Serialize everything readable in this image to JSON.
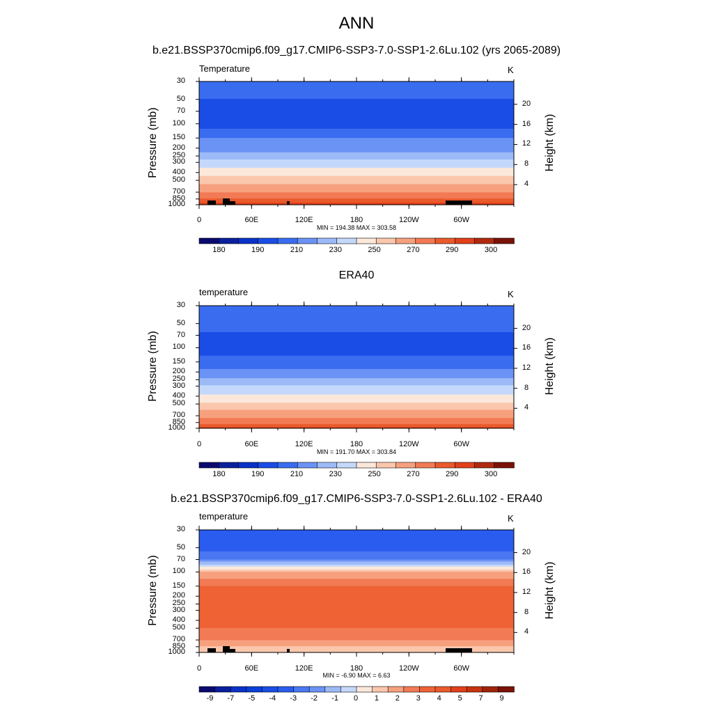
{
  "page_title": "ANN",
  "panels": [
    {
      "title": "b.e21.BSSP370cmip6.f09_g17.CMIP6-SSP3-7.0-SSP1-2.6Lu.102 (yrs 2065-2089)",
      "var_label": "Temperature",
      "unit": "K",
      "stats": "MIN = 194.38  MAX = 303.58",
      "y_left_label": "Pressure (mb)",
      "y_right_label": "Height (km)"
    },
    {
      "title": "ERA40",
      "var_label": "temperature",
      "unit": "K",
      "stats": "MIN = 191.70  MAX = 303.84",
      "y_left_label": "Pressure (mb)",
      "y_right_label": "Height (km)"
    },
    {
      "title": "b.e21.BSSP370cmip6.f09_g17.CMIP6-SSP3-7.0-SSP1-2.6Lu.102 - ERA40",
      "var_label": "temperature",
      "unit": "K",
      "stats": "MIN =  -6.90  MAX =   6.63",
      "y_left_label": "Pressure (mb)",
      "y_right_label": "Height (km)"
    }
  ],
  "chart_data": [
    {
      "type": "heatmap",
      "title": "b.e21.BSSP370cmip6.f09_g17.CMIP6-SSP3-7.0-SSP1-2.6Lu.102 (yrs 2065-2089)",
      "variable": "Temperature",
      "units": "K",
      "x_ticks": [
        "0",
        "60E",
        "120E",
        "180",
        "120W",
        "60W"
      ],
      "pressure_ticks": [
        30,
        50,
        70,
        100,
        150,
        200,
        250,
        300,
        400,
        500,
        700,
        850,
        1000
      ],
      "height_ticks_km": [
        4,
        8,
        12,
        16,
        20
      ],
      "colorbar_levels": [
        180,
        185,
        190,
        200,
        210,
        220,
        230,
        240,
        250,
        260,
        270,
        280,
        290,
        295,
        300,
        305
      ],
      "colorbar_labels": [
        "180",
        "190",
        "210",
        "230",
        "250",
        "270",
        "290",
        "300"
      ],
      "min": 194.38,
      "max": 303.58,
      "profile": [
        {
          "pressure": 30,
          "value": 215
        },
        {
          "pressure": 50,
          "value": 210
        },
        {
          "pressure": 100,
          "value": 205
        },
        {
          "pressure": 150,
          "value": 220
        },
        {
          "pressure": 200,
          "value": 225
        },
        {
          "pressure": 250,
          "value": 235
        },
        {
          "pressure": 300,
          "value": 245
        },
        {
          "pressure": 400,
          "value": 255
        },
        {
          "pressure": 500,
          "value": 265
        },
        {
          "pressure": 700,
          "value": 280
        },
        {
          "pressure": 850,
          "value": 290
        },
        {
          "pressure": 1000,
          "value": 298
        }
      ]
    },
    {
      "type": "heatmap",
      "title": "ERA40",
      "variable": "temperature",
      "units": "K",
      "x_ticks": [
        "0",
        "60E",
        "120E",
        "180",
        "120W",
        "60W"
      ],
      "pressure_ticks": [
        30,
        50,
        70,
        100,
        150,
        200,
        250,
        300,
        400,
        500,
        700,
        850,
        1000
      ],
      "height_ticks_km": [
        4,
        8,
        12,
        16,
        20
      ],
      "colorbar_levels": [
        180,
        185,
        190,
        200,
        210,
        220,
        230,
        240,
        250,
        260,
        270,
        280,
        290,
        295,
        300,
        305
      ],
      "colorbar_labels": [
        "180",
        "190",
        "210",
        "230",
        "250",
        "270",
        "290",
        "300"
      ],
      "min": 191.7,
      "max": 303.84,
      "profile": [
        {
          "pressure": 30,
          "value": 220
        },
        {
          "pressure": 50,
          "value": 215
        },
        {
          "pressure": 70,
          "value": 208
        },
        {
          "pressure": 100,
          "value": 203
        },
        {
          "pressure": 150,
          "value": 215
        },
        {
          "pressure": 200,
          "value": 222
        },
        {
          "pressure": 250,
          "value": 232
        },
        {
          "pressure": 300,
          "value": 242
        },
        {
          "pressure": 400,
          "value": 252
        },
        {
          "pressure": 500,
          "value": 262
        },
        {
          "pressure": 700,
          "value": 277
        },
        {
          "pressure": 850,
          "value": 287
        },
        {
          "pressure": 1000,
          "value": 296
        }
      ]
    },
    {
      "type": "heatmap",
      "title": "b.e21.BSSP370cmip6.f09_g17.CMIP6-SSP3-7.0-SSP1-2.6Lu.102 - ERA40",
      "variable": "temperature",
      "units": "K",
      "x_ticks": [
        "0",
        "60E",
        "120E",
        "180",
        "120W",
        "60W"
      ],
      "pressure_ticks": [
        30,
        50,
        70,
        100,
        150,
        200,
        250,
        300,
        400,
        500,
        700,
        850,
        1000
      ],
      "height_ticks_km": [
        4,
        8,
        12,
        16,
        20
      ],
      "colorbar_levels": [
        -10,
        -9,
        -8,
        -7,
        -6,
        -5,
        -4,
        -3,
        -2,
        -1,
        0,
        1,
        2,
        3,
        4,
        5,
        6,
        7,
        8,
        9
      ],
      "colorbar_labels": [
        "-9",
        "-7",
        "-5",
        "-4",
        "-3",
        "-2",
        "-1",
        "0",
        "1",
        "2",
        "3",
        "4",
        "5",
        "7",
        "9"
      ],
      "min": -6.9,
      "max": 6.63,
      "profile": [
        {
          "pressure": 30,
          "value": -5
        },
        {
          "pressure": 50,
          "value": -4.5
        },
        {
          "pressure": 70,
          "value": -3
        },
        {
          "pressure": 90,
          "value": 0.5
        },
        {
          "pressure": 100,
          "value": 2
        },
        {
          "pressure": 150,
          "value": 4
        },
        {
          "pressure": 250,
          "value": 4.5
        },
        {
          "pressure": 400,
          "value": 4.5
        },
        {
          "pressure": 500,
          "value": 4
        },
        {
          "pressure": 700,
          "value": 3
        },
        {
          "pressure": 850,
          "value": 2
        },
        {
          "pressure": 1000,
          "value": 1
        }
      ]
    }
  ],
  "colors": {
    "abs_scale": [
      "#0a0a6e",
      "#0a1f9e",
      "#0a32c8",
      "#1a4de6",
      "#3a6cf0",
      "#6b93f6",
      "#9dbaf8",
      "#c4d8fb",
      "#fbe8da",
      "#fac7ad",
      "#f7a07e",
      "#f27a55",
      "#ea5a2c",
      "#e0401a",
      "#b02a10",
      "#7a1208"
    ],
    "diff_scale": [
      "#0a0a6e",
      "#0a1f9e",
      "#0a32c8",
      "#0a3fd8",
      "#1a4de6",
      "#2a5cef",
      "#4a77f2",
      "#6b93f6",
      "#9dbaf8",
      "#c4d8fb",
      "#fbe8da",
      "#fac7ad",
      "#f7a07e",
      "#f27a55",
      "#ee6235",
      "#ea5a2c",
      "#e0401a",
      "#c8330f",
      "#a0240a",
      "#7a1208"
    ],
    "topography": "#000000"
  }
}
